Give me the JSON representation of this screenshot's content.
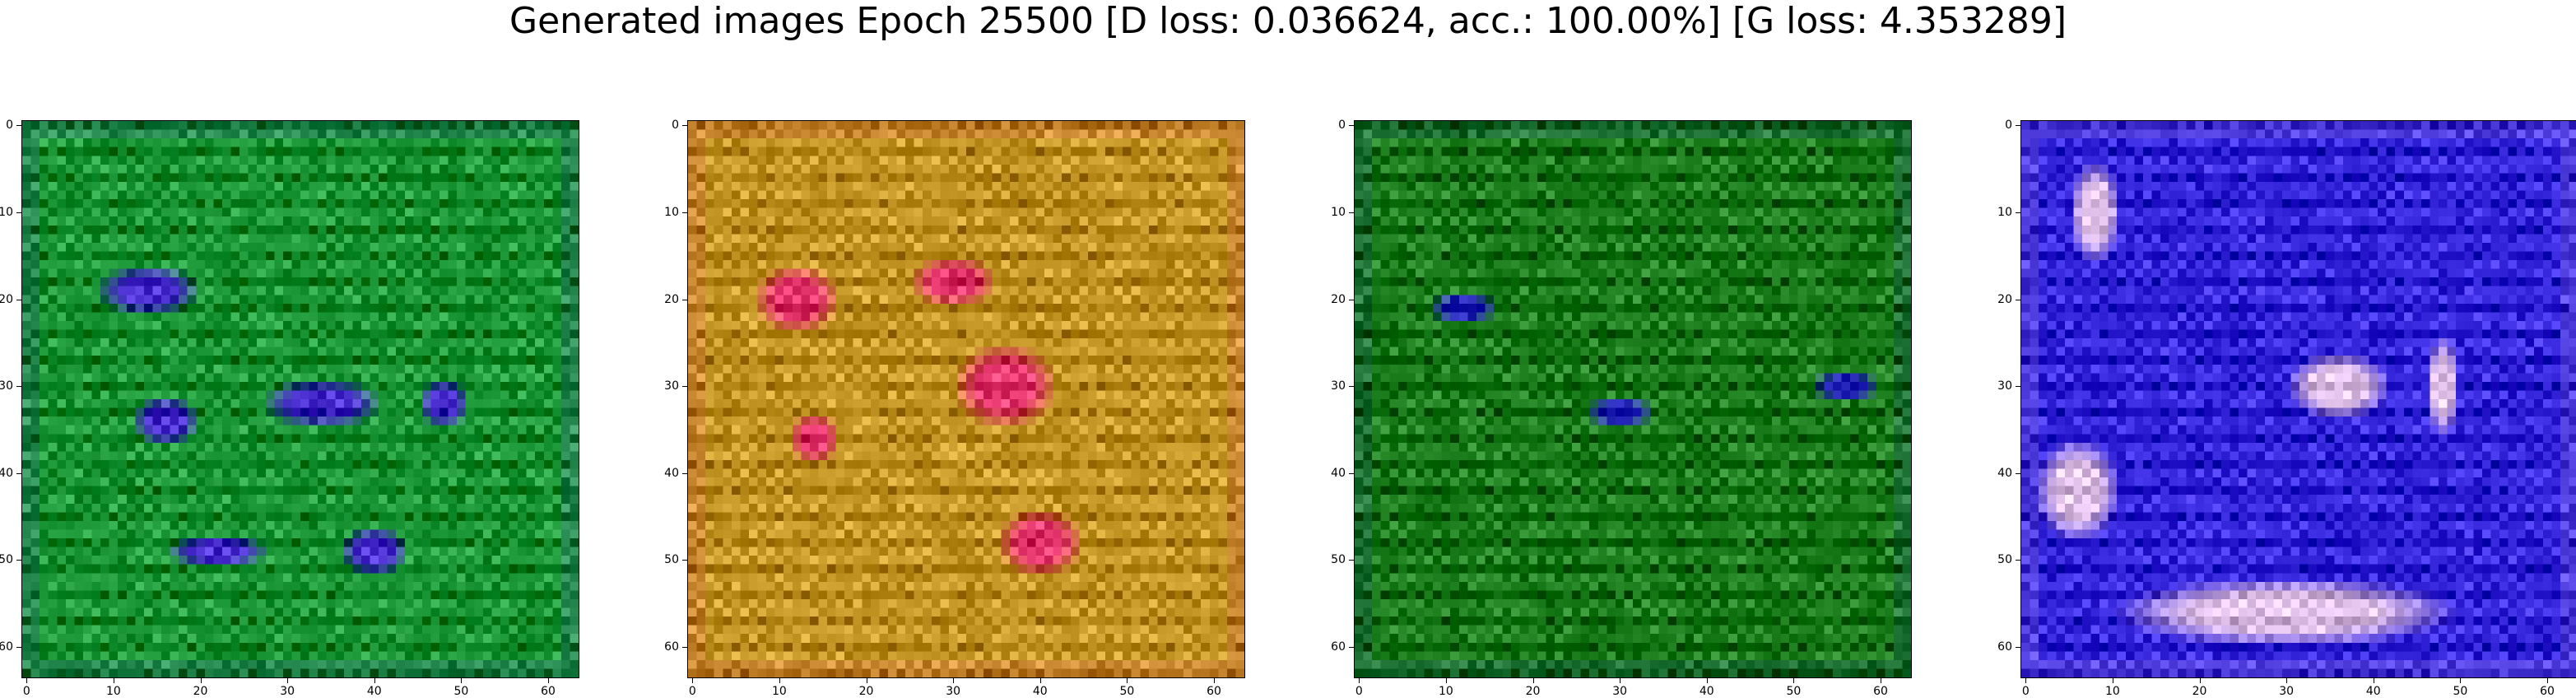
{
  "title": "Generated images Epoch 25500 [D loss: 0.036624, acc.: 100.00%] [G loss: 4.353289]",
  "axis_ticks": [
    "0",
    "10",
    "20",
    "30",
    "40",
    "50",
    "60"
  ],
  "panels": [
    {
      "id": "sample-1",
      "dominant_color": "#1f9a3a",
      "accent_color": "#4b2fd0"
    },
    {
      "id": "sample-2",
      "dominant_color": "#c89a2a",
      "accent_color": "#e83a70"
    },
    {
      "id": "sample-3",
      "dominant_color": "#1d7f1d",
      "accent_color": "#2a2ac0"
    },
    {
      "id": "sample-4",
      "dominant_color": "#3a2ae0",
      "accent_color": "#e8c8f0"
    }
  ]
}
